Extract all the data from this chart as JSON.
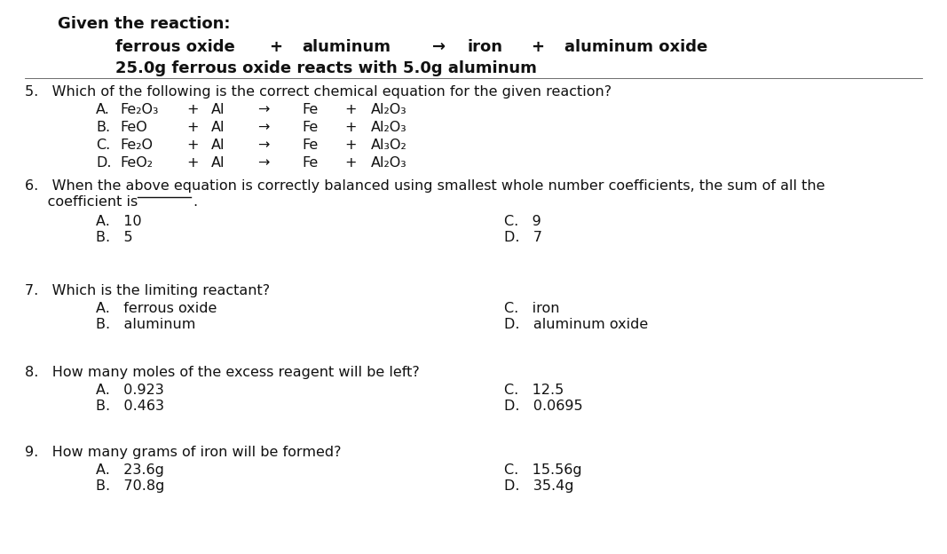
{
  "bg_color": "#ffffff",
  "given_header": "Given the reaction:",
  "rx1": {
    "ferrous_oxide": "ferrous oxide",
    "plus1": "+",
    "aluminum": "aluminum",
    "arrow": "→",
    "iron": "iron",
    "plus2": "+",
    "aluminum_oxide": "aluminum oxide"
  },
  "rx2": "25.0g ferrous oxide reacts with 5.0g aluminum",
  "q5_text": "5.   Which of the following is the correct chemical equation for the given reaction?",
  "q5_opts": [
    [
      "A.",
      "Fe₂O₃",
      "Al₂O₃"
    ],
    [
      "B.",
      "FeO",
      "Al₂O₃"
    ],
    [
      "C.",
      "Fe₂O",
      "Al₃O₂"
    ],
    [
      "D.",
      "FeO₂",
      "Al₂O₃"
    ]
  ],
  "q6_line1": "6.   When the above equation is correctly balanced using smallest whole number coefficients, the sum of all the",
  "q6_line2": "     coefficient is",
  "q6_left": [
    "A.   10",
    "B.   5"
  ],
  "q6_right": [
    "C.   9",
    "D.   7"
  ],
  "q7_text": "7.   Which is the limiting reactant?",
  "q7_left": [
    "A.   ferrous oxide",
    "B.   aluminum"
  ],
  "q7_right": [
    "C.   iron",
    "D.   aluminum oxide"
  ],
  "q8_text": "8.   How many moles of the excess reagent will be left?",
  "q8_left": [
    "A.   0.923",
    "B.   0.463"
  ],
  "q8_right": [
    "C.   12.5",
    "D.   0.0695"
  ],
  "q9_text": "9.   How many grams of iron will be formed?",
  "q9_left": [
    "A.   23.6g",
    "B.   70.8g"
  ],
  "q9_right": [
    "C.   15.56g",
    "D.   35.4g"
  ]
}
